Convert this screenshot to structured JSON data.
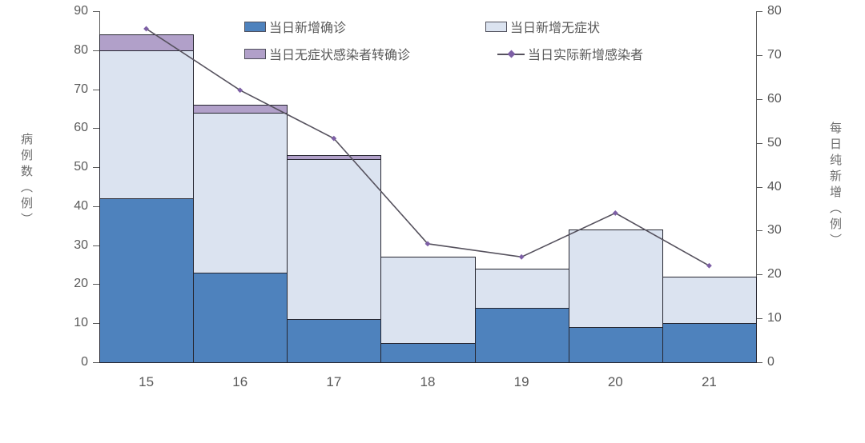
{
  "chart_data": {
    "type": "bar",
    "subtype": "stacked-bar-with-line",
    "categories": [
      "15",
      "16",
      "17",
      "18",
      "19",
      "20",
      "21"
    ],
    "series": [
      {
        "name": "当日新增确诊",
        "type": "bar",
        "axis": "left",
        "color": "#4e82bd",
        "values": [
          42,
          23,
          11,
          5,
          14,
          9,
          10
        ]
      },
      {
        "name": "当日新增无症状",
        "type": "bar",
        "axis": "left",
        "color": "#dbe3f0",
        "values": [
          38,
          41,
          41,
          22,
          10,
          25,
          12
        ]
      },
      {
        "name": "当日无症状感染者转确诊",
        "type": "bar",
        "axis": "left",
        "color": "#b1a0c9",
        "values": [
          4,
          2,
          1,
          0,
          0,
          0,
          0
        ]
      }
    ],
    "bar_totals": [
      84,
      66,
      53,
      27,
      24,
      34,
      22
    ],
    "line_series": {
      "name": "当日实际新增感染者",
      "type": "line",
      "axis": "right",
      "color": "#56525e",
      "marker_color": "#7d5fa5",
      "values": [
        76,
        62,
        51,
        27,
        24,
        34,
        22
      ]
    },
    "left_axis": {
      "label": "病例数（例）",
      "min": 0,
      "max": 90,
      "step": 10,
      "tick_labels": [
        "0",
        "10",
        "20",
        "30",
        "40",
        "50",
        "60",
        "70",
        "80",
        "90"
      ]
    },
    "right_axis": {
      "label": "每日纯新增（例）",
      "min": 0,
      "max": 80,
      "step": 10,
      "tick_labels": [
        "0",
        "10",
        "20",
        "30",
        "40",
        "50",
        "60",
        "70",
        "80"
      ]
    },
    "legend": {
      "position": "top",
      "items": [
        "当日新增确诊",
        "当日新增无症状",
        "当日无症状感染者转确诊",
        "当日实际新增感染者"
      ]
    },
    "grid": false,
    "colors": {
      "bar_border": "#262630",
      "axis": "#595959",
      "text": "#595959"
    }
  }
}
